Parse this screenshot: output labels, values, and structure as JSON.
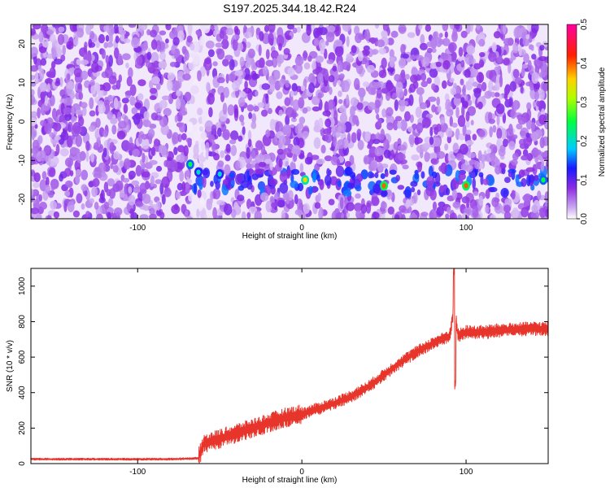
{
  "title": "S197.2025.344.18.42.R24",
  "chart_data": [
    {
      "type": "heatmap",
      "title": "S197.2025.344.18.42.R24",
      "xlabel": "Height of straight line (km)",
      "ylabel": "Frequency (Hz)",
      "xlim": [
        -165,
        150
      ],
      "ylim": [
        -25,
        25
      ],
      "xticks": [
        -100,
        0,
        100
      ],
      "yticks": [
        -20,
        -10,
        0,
        10,
        20
      ],
      "colorbar": {
        "label": "Normalized spectral amplitude",
        "range": [
          0,
          0.5
        ],
        "ticks": [
          "0.0",
          "0.1",
          "0.2",
          "0.3",
          "0.4",
          "0.5"
        ],
        "colormap": [
          "#ffffff",
          "#8a2be2",
          "#0000ff",
          "#00ffff",
          "#00ff00",
          "#ffff00",
          "#ff0000",
          "#ff00ff"
        ]
      },
      "signal_band": {
        "x_start": -68,
        "x_end": 150,
        "freq_center": -15.5,
        "freq_width": 3
      },
      "gap_columns_x": [
        -66,
        -60
      ],
      "hot_spots": [
        {
          "x": -68,
          "y": -11,
          "value": 0.25
        },
        {
          "x": -63,
          "y": -13,
          "value": 0.2
        },
        {
          "x": -50,
          "y": -13.5,
          "value": 0.2
        },
        {
          "x": 2,
          "y": -15,
          "value": 0.35
        },
        {
          "x": 50,
          "y": -16.5,
          "value": 0.4
        },
        {
          "x": 100,
          "y": -16.5,
          "value": 0.4
        },
        {
          "x": 147,
          "y": -15,
          "value": 0.25
        }
      ]
    },
    {
      "type": "line",
      "xlabel": "Height of straight line (km)",
      "ylabel": "SNR (10 * v/v)",
      "xlim": [
        -165,
        150
      ],
      "ylim": [
        0,
        1100
      ],
      "xticks": [
        -100,
        0,
        100
      ],
      "yticks": [
        0,
        200,
        400,
        600,
        800,
        1000
      ],
      "color": "#e8352b",
      "series": [
        {
          "x": [
            -165,
            -120,
            -80,
            -63,
            -60,
            -50,
            -40,
            -30,
            -20,
            -10,
            0,
            10,
            20,
            30,
            40,
            50,
            60,
            70,
            80,
            90,
            93,
            95,
            100,
            110,
            120,
            130,
            140,
            150
          ],
          "values": [
            25,
            25,
            25,
            30,
            110,
            140,
            170,
            200,
            230,
            260,
            280,
            310,
            340,
            380,
            430,
            500,
            570,
            630,
            680,
            720,
            900,
            720,
            740,
            740,
            750,
            755,
            760,
            760
          ]
        }
      ]
    }
  ]
}
